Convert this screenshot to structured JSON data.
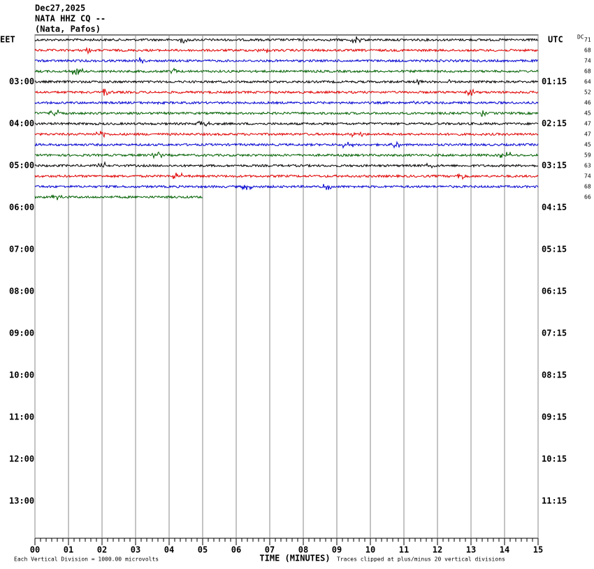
{
  "chart_data": {
    "type": "helicorder",
    "title_lines": [
      "Dec27,2025",
      "NATA HHZ CQ --",
      "(Nata, Pafos)"
    ],
    "left_label": "EET",
    "right_label": "UTC",
    "dc_label": "DC",
    "left_times": [
      "03:00",
      "04:00",
      "05:00",
      "06:00",
      "07:00",
      "08:00",
      "09:00",
      "10:00",
      "11:00",
      "12:00",
      "13:00"
    ],
    "right_times": [
      "01:15",
      "02:15",
      "03:15",
      "04:15",
      "05:15",
      "06:15",
      "07:15",
      "08:15",
      "09:15",
      "10:15",
      "11:15"
    ],
    "dc_offsets": [
      71,
      68,
      74,
      68,
      64,
      52,
      46,
      45,
      47,
      47,
      45,
      59,
      63,
      74,
      68,
      66
    ],
    "trace_colors": [
      "#000000",
      "#e00000",
      "#0000d0",
      "#006000"
    ],
    "last_row_minutes": 5,
    "xlim": [
      0,
      15
    ],
    "xticks": [
      {
        "value": 0,
        "label": "00"
      },
      {
        "value": 1,
        "label": "01"
      },
      {
        "value": 2,
        "label": "02"
      },
      {
        "value": 3,
        "label": "03"
      },
      {
        "value": 4,
        "label": "04"
      },
      {
        "value": 5,
        "label": "05"
      },
      {
        "value": 6,
        "label": "06"
      },
      {
        "value": 7,
        "label": "07"
      },
      {
        "value": 8,
        "label": "08"
      },
      {
        "value": 9,
        "label": "09"
      },
      {
        "value": 10,
        "label": "10"
      },
      {
        "value": 11,
        "label": "11"
      },
      {
        "value": 12,
        "label": "12"
      },
      {
        "value": 13,
        "label": "13"
      },
      {
        "value": 14,
        "label": "14"
      },
      {
        "value": 15,
        "label": "15"
      }
    ],
    "xlabel": "TIME (MINUTES)",
    "footnote_left": "Each Vertical Division = 1000.00 microvolts",
    "footnote_right": "Traces clipped at plus/minus 20 vertical divisions"
  }
}
